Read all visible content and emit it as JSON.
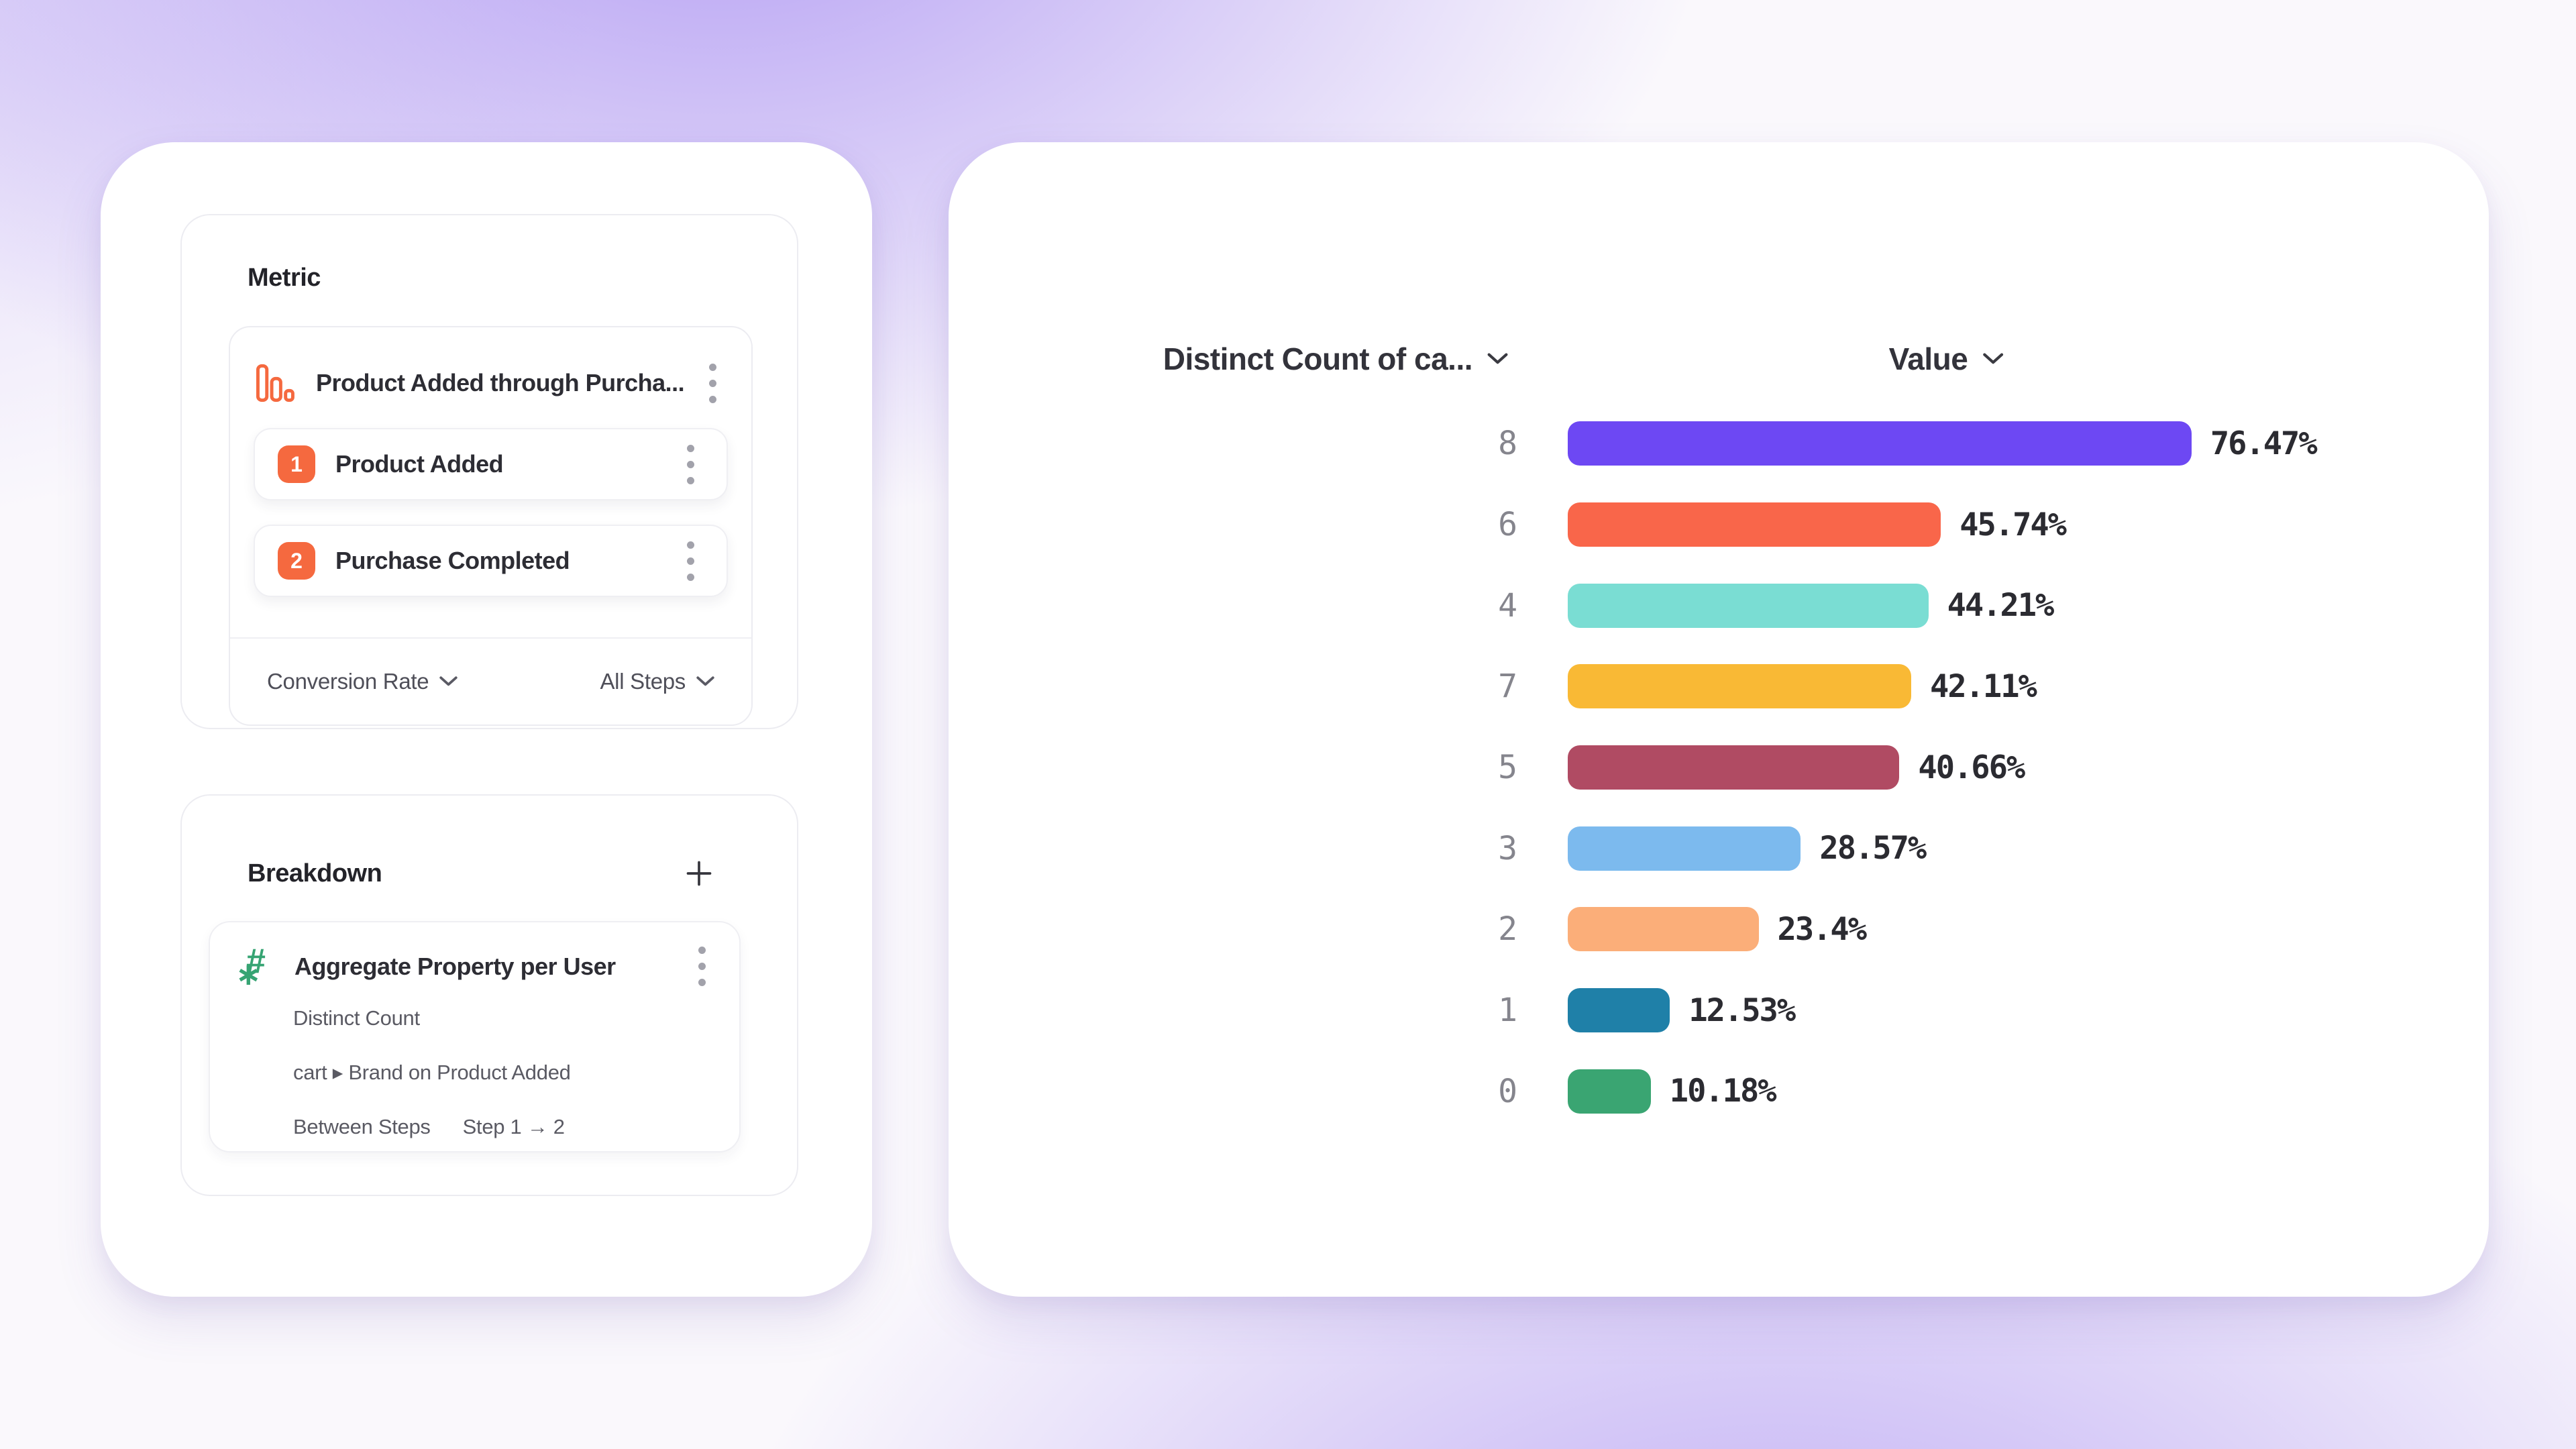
{
  "colors": {
    "accent_orange": "#F5693F",
    "accent_green": "#36A473",
    "background_glow_purple": "#7B55EB"
  },
  "metric": {
    "heading": "Metric",
    "funnel": {
      "title": "Product Added through Purcha...",
      "steps": [
        {
          "index": "1",
          "label": "Product Added"
        },
        {
          "index": "2",
          "label": "Purchase Completed"
        }
      ],
      "measure_dropdown": "Conversion Rate",
      "steps_dropdown": "All Steps"
    }
  },
  "breakdown": {
    "heading": "Breakdown",
    "property": {
      "title": "Aggregate Property per User",
      "aggregation": "Distinct Count",
      "path": "cart ▸ Brand on Product Added",
      "between_label": "Between Steps",
      "between_value": "Step 1 → 2"
    }
  },
  "chart": {
    "breakdown_header": "Distinct Count of ca...",
    "value_header": "Value"
  },
  "chart_data": {
    "type": "bar",
    "orientation": "horizontal",
    "title": "",
    "xlabel": "Value",
    "ylabel": "Distinct Count of ca...",
    "xlim": [
      0,
      100
    ],
    "grid": false,
    "legend": "none",
    "categories": [
      "8",
      "6",
      "4",
      "7",
      "5",
      "3",
      "2",
      "1",
      "0"
    ],
    "values": [
      76.47,
      45.74,
      44.21,
      42.11,
      40.66,
      28.57,
      23.4,
      12.53,
      10.18
    ],
    "value_labels": [
      "76.47%",
      "45.74%",
      "44.21%",
      "42.11%",
      "40.66%",
      "28.57%",
      "23.4%",
      "12.53%",
      "10.18%"
    ],
    "bar_colors": [
      "#6D48F3",
      "#F9664A",
      "#7ADDD3",
      "#F9B935",
      "#B04B63",
      "#7CBAEE",
      "#FBAE79",
      "#1F80A8",
      "#3AA572"
    ]
  }
}
